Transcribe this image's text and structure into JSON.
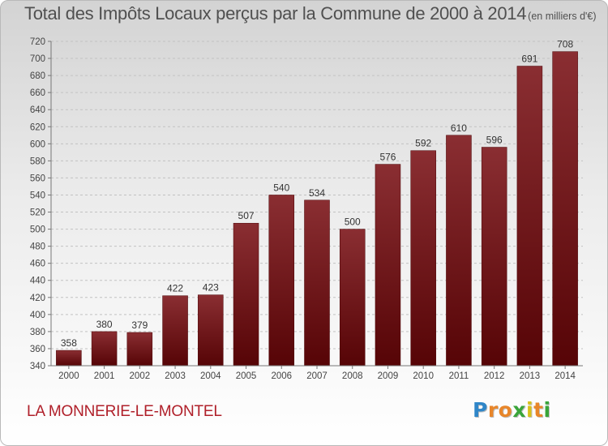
{
  "chart_data": {
    "type": "bar",
    "title": "Total des Impôts Locaux perçus par la Commune de 2000 à 2014",
    "title_unit": "(en milliers d'€)",
    "categories": [
      "2000",
      "2001",
      "2002",
      "2003",
      "2004",
      "2005",
      "2006",
      "2007",
      "2008",
      "2009",
      "2010",
      "2011",
      "2012",
      "2013",
      "2014"
    ],
    "values": [
      358,
      380,
      379,
      422,
      423,
      507,
      540,
      534,
      500,
      576,
      592,
      610,
      596,
      691,
      708
    ],
    "ylim": [
      340,
      720
    ],
    "ytick_step": 20,
    "xlabel": "",
    "ylabel": "",
    "grid": true,
    "bar_color": "#7a1a1e"
  },
  "commune_name": "LA MONNERIE-LE-MONTEL",
  "logo": {
    "letters": [
      "P",
      "r",
      "o",
      "x",
      "i",
      "t",
      "i"
    ],
    "colors": [
      "#2f86c8",
      "#e8862a",
      "#e8862a",
      "#3aa53a",
      "#d8c21a",
      "#e8862a",
      "#3aa53a"
    ]
  }
}
